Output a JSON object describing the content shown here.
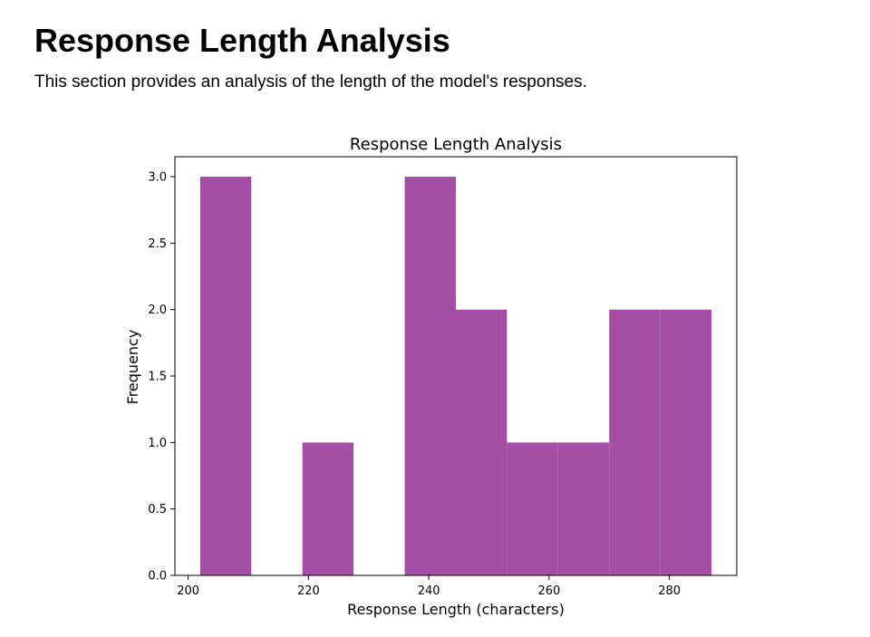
{
  "page": {
    "title": "Response Length Analysis",
    "description": "This section provides an analysis of the length of the model's responses."
  },
  "chart_data": {
    "type": "bar",
    "title": "Response Length Analysis",
    "xlabel": "Response Length (characters)",
    "ylabel": "Frequency",
    "color": "#a44ea5",
    "xlim": [
      197.8,
      291.2
    ],
    "ylim": [
      0,
      3.15
    ],
    "xticks": [
      200,
      220,
      240,
      260,
      280
    ],
    "yticks": [
      "0.0",
      "0.5",
      "1.0",
      "1.5",
      "2.0",
      "2.5",
      "3.0"
    ],
    "bins": [
      {
        "start": 202.0,
        "end": 210.5,
        "value": 3
      },
      {
        "start": 210.5,
        "end": 219.0,
        "value": 0
      },
      {
        "start": 219.0,
        "end": 227.5,
        "value": 1
      },
      {
        "start": 227.5,
        "end": 236.0,
        "value": 0
      },
      {
        "start": 236.0,
        "end": 244.5,
        "value": 3
      },
      {
        "start": 244.5,
        "end": 253.0,
        "value": 2
      },
      {
        "start": 253.0,
        "end": 261.5,
        "value": 1
      },
      {
        "start": 261.5,
        "end": 270.0,
        "value": 1
      },
      {
        "start": 270.0,
        "end": 278.5,
        "value": 2
      },
      {
        "start": 278.5,
        "end": 287.0,
        "value": 2
      }
    ],
    "grid": false,
    "legend": false
  }
}
